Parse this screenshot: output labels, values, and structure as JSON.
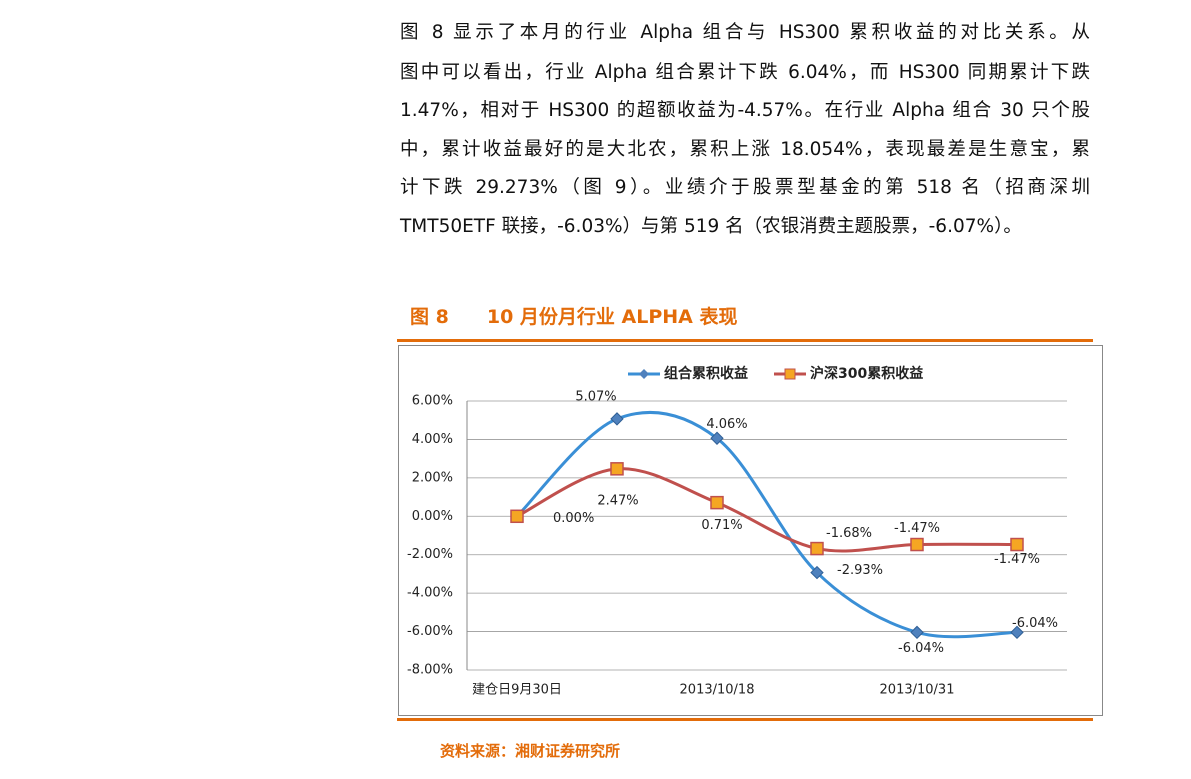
{
  "text": {
    "lines": [
      "图 8 显示了本月的行业 Alpha 组合与 HS300 累积收益的对比关系。从",
      "图中可以看出，行业 Alpha 组合累计下跌 6.04%，而 HS300 同期累计下跌",
      "1.47%，相对于 HS300 的超额收益为-4.57%。在行业 Alpha 组合 30 只个股",
      "中，累计收益最好的是大北农，累积上涨 18.054%，表现最差是生意宝，累",
      "计下跌 29.273%（图 9）。业绩介于股票型基金的第 518 名（招商深圳",
      "TMT50ETF 联接，-6.03%）与第 519 名（农银消费主题股票，-6.07%）。"
    ]
  },
  "figure": {
    "label": "图 8",
    "title": "10 月份月行业 ALPHA 表现"
  },
  "chart_data": {
    "type": "line",
    "categories": [
      "建仓日9月30日",
      null,
      "2013/10/18",
      null,
      "2013/10/31",
      null
    ],
    "series": [
      {
        "name": "组合累积收益",
        "color": "#3a8fd6",
        "marker": "diamond",
        "marker_color": "#4f81bd",
        "values": [
          0,
          5.07,
          4.06,
          -2.93,
          -6.04,
          -6.04
        ],
        "value_labels": [
          "0.00%",
          "5.07%",
          "4.06%",
          "-2.93%",
          "-6.04%",
          "-6.04%"
        ]
      },
      {
        "name": "沪深300累积收益",
        "color": "#c0504d",
        "marker": "square",
        "marker_color": "#f5a623",
        "values": [
          0,
          2.47,
          0.71,
          -1.68,
          -1.47,
          -1.47
        ],
        "value_labels": [
          null,
          "2.47%",
          "0.71%",
          "-1.68%",
          "-1.47%",
          "-1.47%"
        ]
      }
    ],
    "ylim": [
      -8,
      6
    ],
    "yticks": [
      {
        "value": -8,
        "label": "-8.00%"
      },
      {
        "value": -6,
        "label": "-6.00%"
      },
      {
        "value": -4,
        "label": "-4.00%"
      },
      {
        "value": -2,
        "label": "-2.00%"
      },
      {
        "value": 0,
        "label": "0.00%"
      },
      {
        "value": 2,
        "label": "2.00%"
      },
      {
        "value": 4,
        "label": "4.00%"
      },
      {
        "value": 6,
        "label": "6.00%"
      }
    ],
    "grid": true,
    "smooth": true,
    "legend": "top"
  },
  "source": "资料来源：湘财证券研究所"
}
